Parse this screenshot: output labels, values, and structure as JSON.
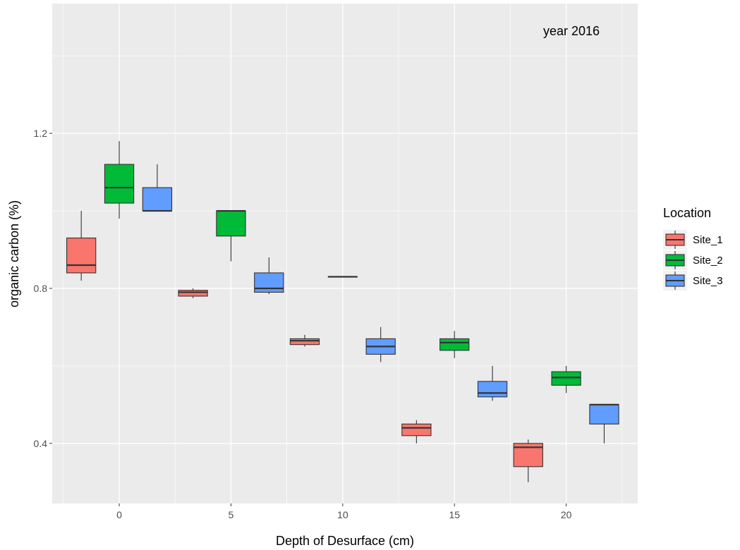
{
  "chart_data": {
    "type": "boxplot",
    "annotation": "year 2016",
    "xlabel": "Depth of Desurface (cm)",
    "ylabel": "organic carbon (%)",
    "xlim": [
      -3,
      23.2
    ],
    "ylim": [
      0.245,
      1.535
    ],
    "x_ticks": [
      0,
      5,
      10,
      15,
      20
    ],
    "y_ticks": [
      0.4,
      0.8,
      1.2
    ],
    "grid": true,
    "legend": {
      "title": "Location",
      "position": "right",
      "entries": [
        "Site_1",
        "Site_2",
        "Site_3"
      ]
    },
    "series": [
      {
        "name": "Site_1",
        "color": "#F8766D",
        "boxes": [
          {
            "x": -1.7,
            "min": 0.82,
            "q1": 0.84,
            "median": 0.86,
            "q3": 0.93,
            "max": 1.0
          },
          {
            "x": 3.3,
            "min": 0.775,
            "q1": 0.78,
            "median": 0.79,
            "q3": 0.795,
            "max": 0.8
          },
          {
            "x": 8.3,
            "min": 0.65,
            "q1": 0.655,
            "median": 0.665,
            "q3": 0.67,
            "max": 0.68
          },
          {
            "x": 13.3,
            "min": 0.4,
            "q1": 0.42,
            "median": 0.44,
            "q3": 0.45,
            "max": 0.46
          },
          {
            "x": 18.3,
            "min": 0.3,
            "q1": 0.34,
            "median": 0.39,
            "q3": 0.4,
            "max": 0.41
          }
        ]
      },
      {
        "name": "Site_2",
        "color": "#00BA38",
        "boxes": [
          {
            "x": 0,
            "min": 0.98,
            "q1": 1.02,
            "median": 1.06,
            "q3": 1.12,
            "max": 1.18
          },
          {
            "x": 5,
            "min": 0.87,
            "q1": 0.935,
            "median": 1.0,
            "q3": 1.0,
            "max": 1.0
          },
          {
            "x": 10,
            "min": 0.83,
            "q1": 0.83,
            "median": 0.83,
            "q3": 0.83,
            "max": 0.83
          },
          {
            "x": 15,
            "min": 0.62,
            "q1": 0.64,
            "median": 0.66,
            "q3": 0.67,
            "max": 0.69
          },
          {
            "x": 20,
            "min": 0.53,
            "q1": 0.55,
            "median": 0.57,
            "q3": 0.585,
            "max": 0.6
          }
        ]
      },
      {
        "name": "Site_3",
        "color": "#619CFF",
        "boxes": [
          {
            "x": 1.7,
            "min": 1.0,
            "q1": 1.0,
            "median": 1.0,
            "q3": 1.06,
            "max": 1.12
          },
          {
            "x": 6.7,
            "min": 0.785,
            "q1": 0.79,
            "median": 0.8,
            "q3": 0.84,
            "max": 0.88
          },
          {
            "x": 11.7,
            "min": 0.61,
            "q1": 0.63,
            "median": 0.65,
            "q3": 0.67,
            "max": 0.7
          },
          {
            "x": 16.7,
            "min": 0.51,
            "q1": 0.52,
            "median": 0.53,
            "q3": 0.56,
            "max": 0.6
          },
          {
            "x": 21.7,
            "min": 0.4,
            "q1": 0.45,
            "median": 0.5,
            "q3": 0.5,
            "max": 0.5
          }
        ]
      }
    ]
  }
}
